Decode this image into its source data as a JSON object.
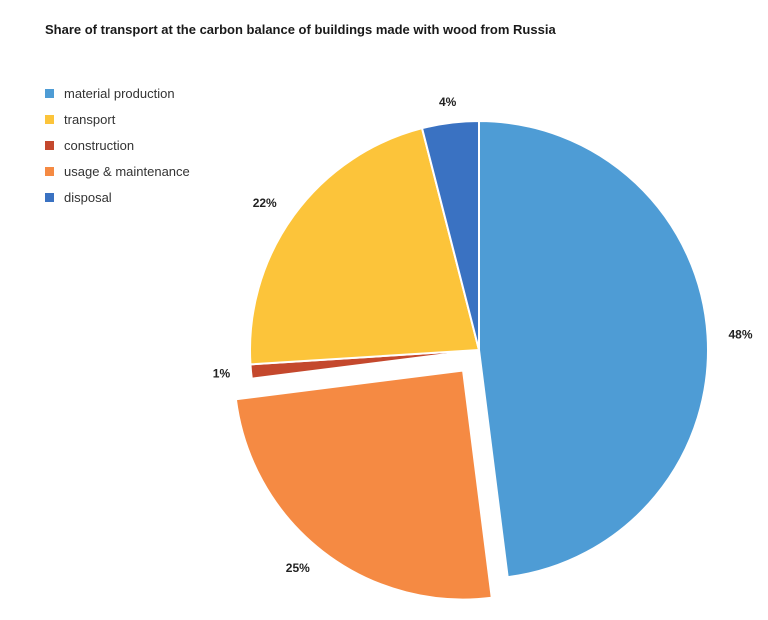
{
  "chart_data": {
    "type": "pie",
    "title": "Share of transport at the carbon balance of buildings made with wood from Russia",
    "legend_position": "top-left",
    "slices": [
      {
        "label": "material production",
        "value": 48,
        "display": "48%",
        "color": "#4e9cd5",
        "exploded": false
      },
      {
        "label": "usage & maintenance",
        "value": 25,
        "display": "25%",
        "color": "#f58a43",
        "exploded": true
      },
      {
        "label": "construction",
        "value": 1,
        "display": "1%",
        "color": "#c4482d",
        "exploded": false
      },
      {
        "label": "transport",
        "value": 22,
        "display": "22%",
        "color": "#fcc43a",
        "exploded": false
      },
      {
        "label": "disposal",
        "value": 4,
        "display": "4%",
        "color": "#3a72c2",
        "exploded": false
      }
    ],
    "legend": [
      {
        "label": "material production",
        "color": "#4e9cd5"
      },
      {
        "label": "transport",
        "color": "#fcc43a"
      },
      {
        "label": "construction",
        "color": "#c4482d"
      },
      {
        "label": "usage & maintenance",
        "color": "#f58a43"
      },
      {
        "label": "disposal",
        "color": "#3a72c2"
      }
    ]
  }
}
